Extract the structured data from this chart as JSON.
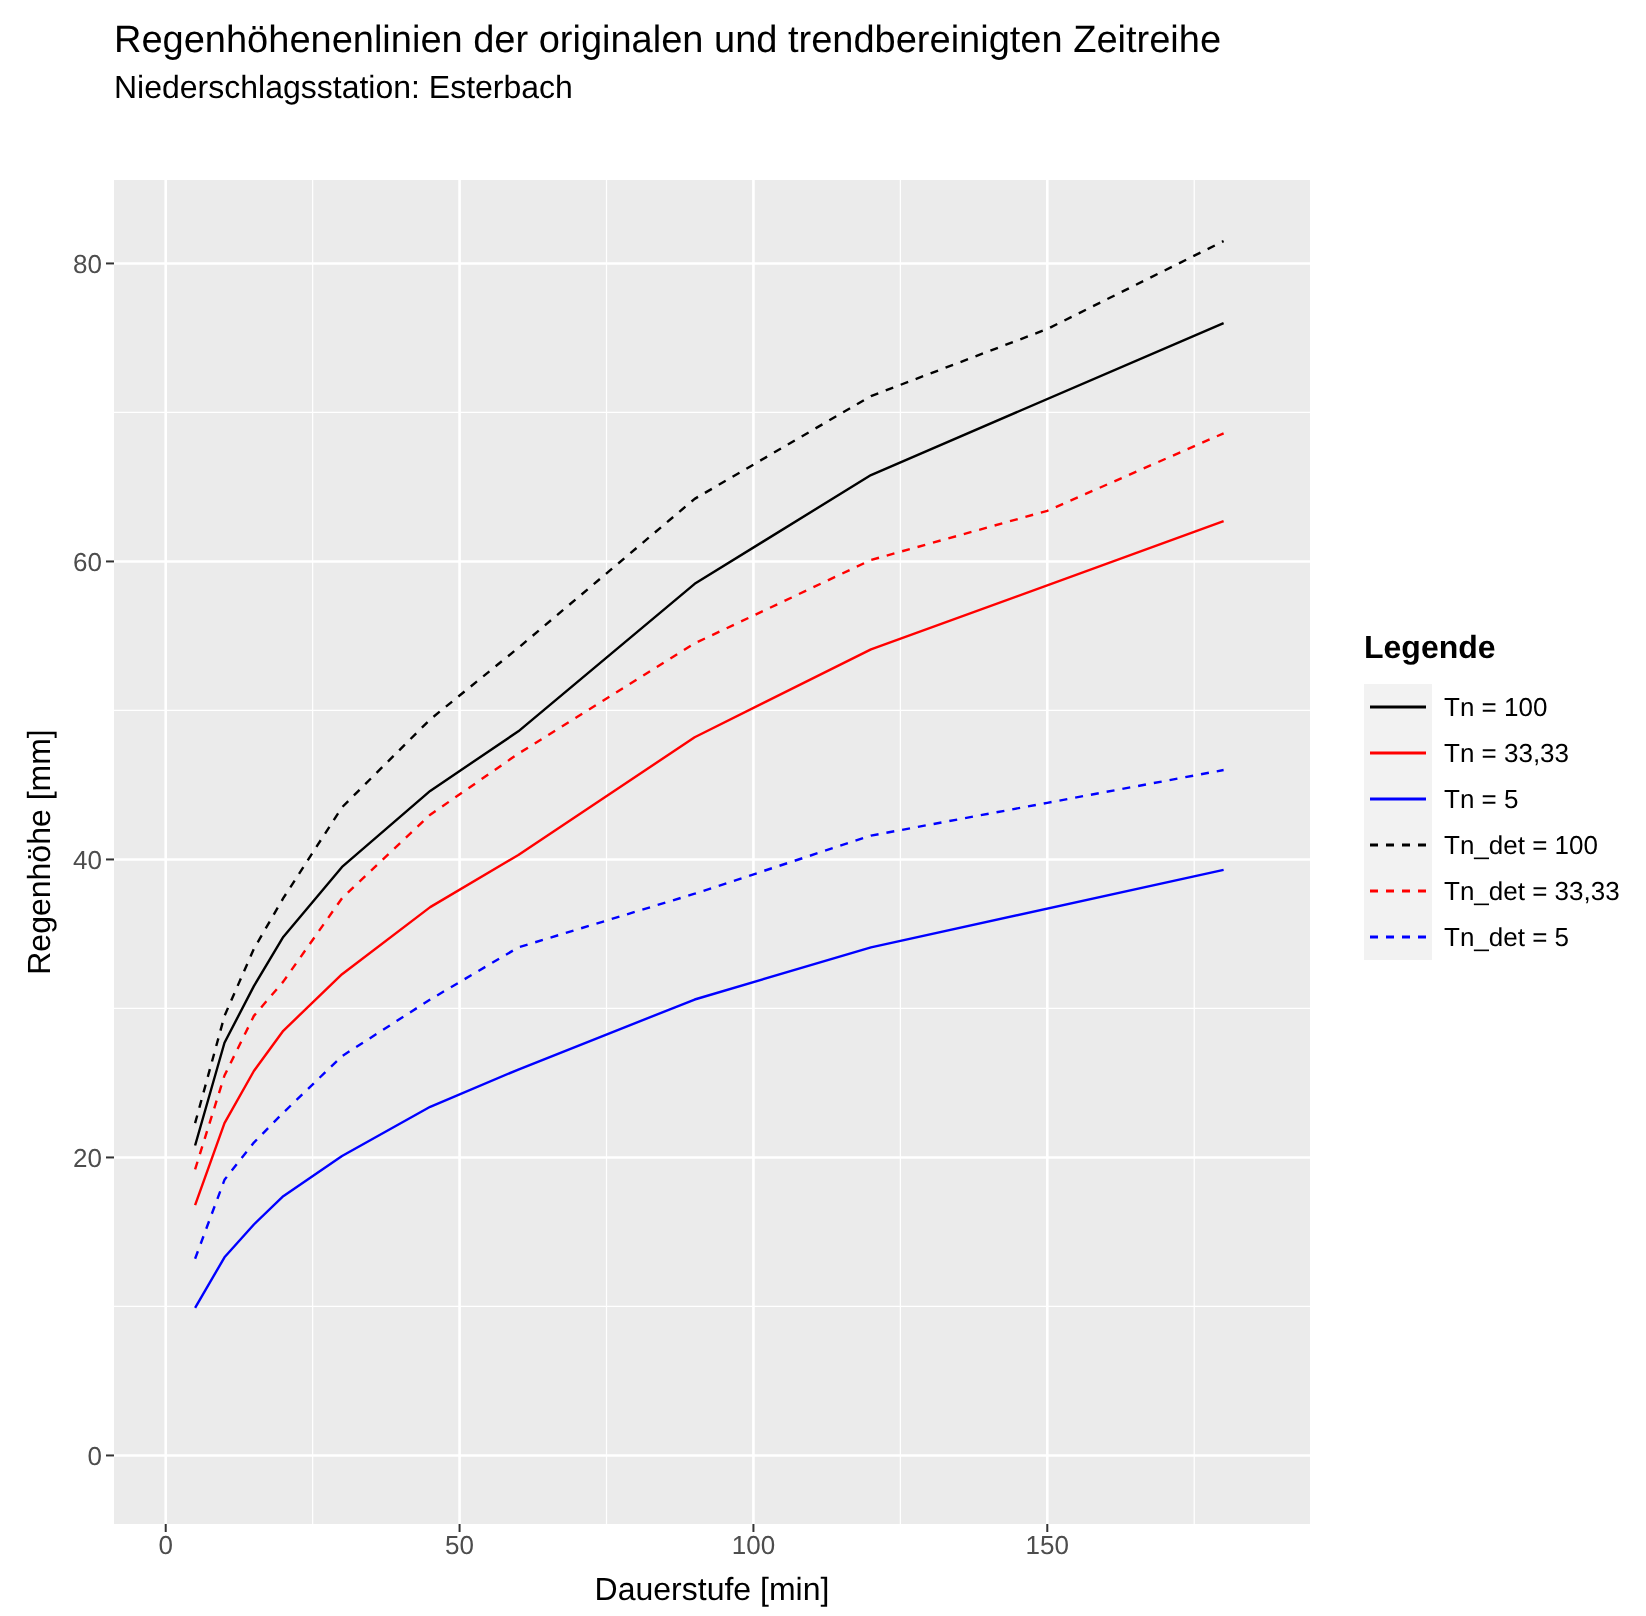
{
  "chart_data": {
    "type": "line",
    "title": "Regenhöhenenlinien der originalen und trendbereinigten Zeitreihe",
    "subtitle": "Niederschlagsstation: Esterbach",
    "xlabel": "Dauerstufe [min]",
    "ylabel": "Regenhöhe [mm]",
    "legend_title": "Legende",
    "xlim": [
      -8.8,
      194.7
    ],
    "xticks": [
      0,
      50,
      100,
      150
    ],
    "ylim": [
      -4.6,
      85.6
    ],
    "yticks": [
      0,
      20,
      40,
      60,
      80
    ],
    "grid": true,
    "legend": "right",
    "marker": "none",
    "series": [
      {
        "name": "Tn = 100",
        "color": "#000000",
        "line_style": "solid",
        "x": [
          5,
          10,
          15,
          20,
          30,
          45,
          60,
          90,
          120,
          180
        ],
        "values": [
          20.8,
          27.7,
          31.5,
          34.8,
          39.5,
          44.6,
          48.6,
          58.5,
          65.8,
          76.0
        ]
      },
      {
        "name": "Tn = 33,33",
        "color": "#ff0000",
        "line_style": "solid",
        "x": [
          5,
          10,
          15,
          20,
          30,
          45,
          60,
          90,
          120,
          180
        ],
        "values": [
          16.8,
          22.3,
          25.8,
          28.5,
          32.3,
          36.8,
          40.3,
          48.2,
          54.1,
          62.7
        ]
      },
      {
        "name": "Tn = 5",
        "color": "#0000ff",
        "line_style": "solid",
        "x": [
          5,
          10,
          15,
          20,
          30,
          45,
          60,
          90,
          120,
          180
        ],
        "values": [
          9.9,
          13.3,
          15.5,
          17.4,
          20.1,
          23.4,
          25.9,
          30.6,
          34.1,
          39.3
        ]
      },
      {
        "name": "Tn_det = 100",
        "color": "#000000",
        "line_style": "dashed",
        "x": [
          5,
          10,
          15,
          20,
          30,
          45,
          60,
          90,
          120,
          150,
          180
        ],
        "values": [
          22.3,
          29.5,
          34.0,
          37.4,
          43.5,
          49.4,
          54.2,
          64.2,
          71.1,
          75.6,
          81.5
        ]
      },
      {
        "name": "Tn_det = 33,33",
        "color": "#ff0000",
        "line_style": "dashed",
        "x": [
          5,
          10,
          15,
          20,
          30,
          45,
          60,
          90,
          120,
          150,
          180
        ],
        "values": [
          19.2,
          25.5,
          29.5,
          31.8,
          37.4,
          43.0,
          47.1,
          54.5,
          60.1,
          63.4,
          68.6
        ]
      },
      {
        "name": "Tn_det = 5",
        "color": "#0000ff",
        "line_style": "dashed",
        "x": [
          5,
          10,
          15,
          20,
          30,
          45,
          60,
          90,
          120,
          150,
          180
        ],
        "values": [
          13.2,
          18.5,
          21.0,
          23.0,
          26.8,
          30.6,
          34.1,
          37.7,
          41.6,
          43.8,
          46.0
        ]
      }
    ]
  }
}
